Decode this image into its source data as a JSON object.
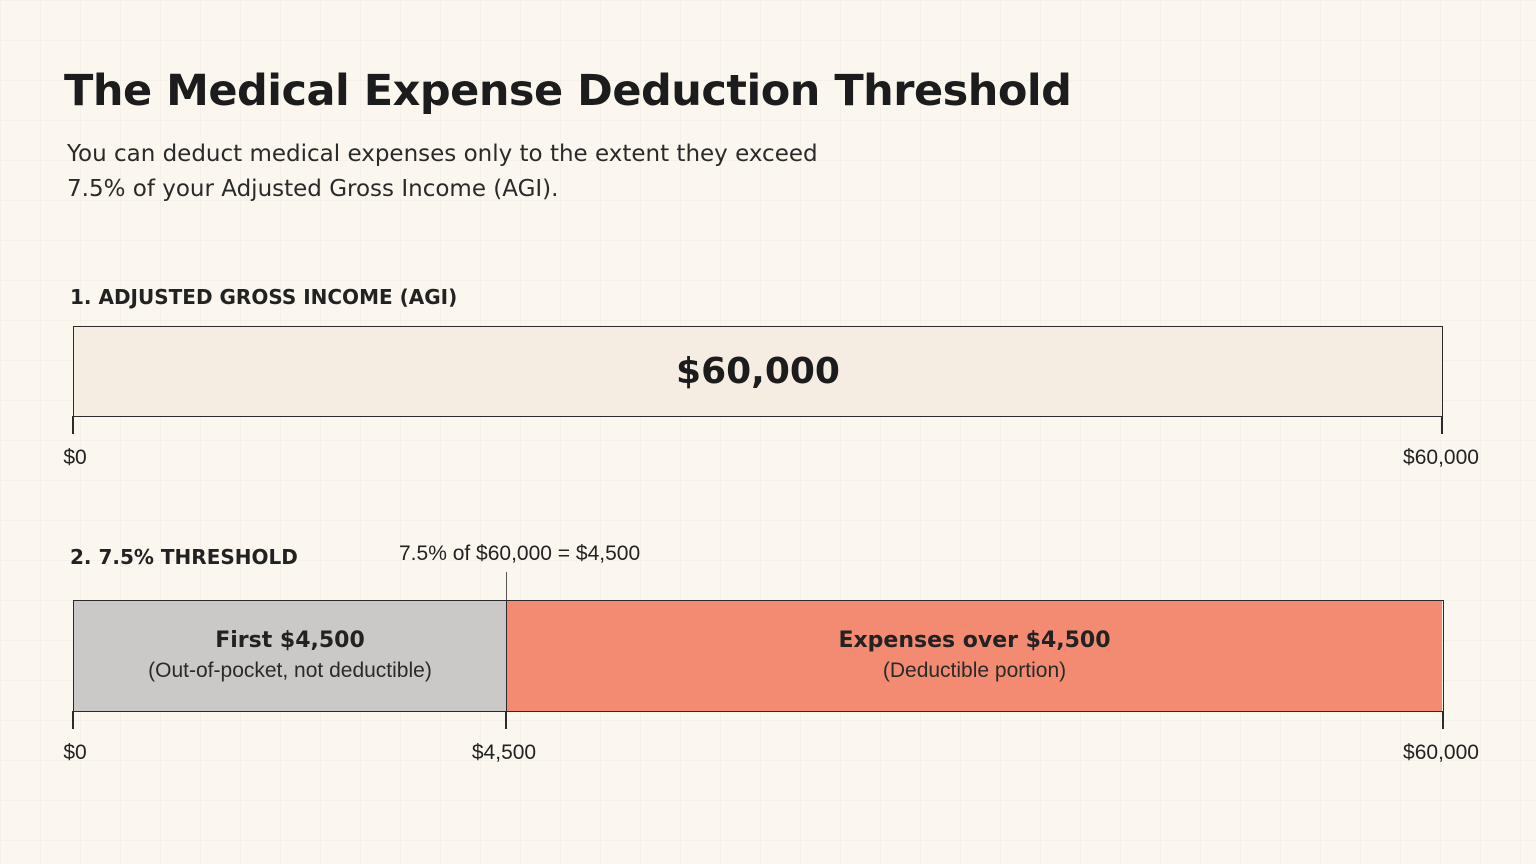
{
  "header": {
    "title": "The Medical Expense Deduction Threshold",
    "subtitle": "You can deduct medical expenses only to the extent they exceed 7.5% of your Adjusted Gross Income (AGI)."
  },
  "agi_section": {
    "label": "1. ADJUSTED GROSS INCOME (AGI)",
    "value": "$60,000",
    "axis_start": "$0",
    "axis_end": "$60,000"
  },
  "threshold_section": {
    "label": "2. 7.5% THRESHOLD",
    "marker_label": "7.5% of $60,000 = $4,500",
    "threshold_amount": 4500,
    "total_amount": 60000,
    "segments": [
      {
        "title": "First $4,500",
        "subtitle": "(Out-of-pocket, not deductible)",
        "color": "#cbc9c8"
      },
      {
        "title": "Expenses over $4,500",
        "subtitle": "(Deductible portion)",
        "color": "#f38a72"
      }
    ],
    "axis_start": "$0",
    "axis_mid": "$4,500",
    "axis_end": "$60,000"
  }
}
